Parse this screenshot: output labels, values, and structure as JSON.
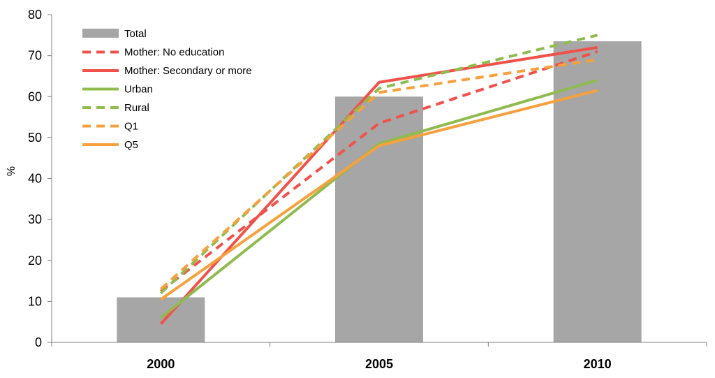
{
  "chart_data": {
    "type": "bar+line",
    "title": "",
    "xlabel": "",
    "ylabel": "%",
    "ylim": [
      0,
      80
    ],
    "yticks": [
      0,
      10,
      20,
      30,
      40,
      50,
      60,
      70,
      80
    ],
    "categories": [
      "2000",
      "2005",
      "2010"
    ],
    "legend_position": "top-left",
    "bars": {
      "name": "Total",
      "color": "#a6a6a6",
      "values": [
        11,
        60,
        73.5
      ]
    },
    "series": [
      {
        "name": "Mother: No education",
        "color": "#f0524b",
        "dashed": true,
        "values": [
          12.5,
          53.5,
          71
        ]
      },
      {
        "name": "Mother: Secondary or more",
        "color": "#f0524b",
        "dashed": false,
        "values": [
          4.5,
          63.5,
          72
        ]
      },
      {
        "name": "Urban",
        "color": "#8fbb4f",
        "dashed": false,
        "values": [
          6,
          48.5,
          64
        ]
      },
      {
        "name": "Rural",
        "color": "#8fbb4f",
        "dashed": true,
        "values": [
          12,
          62,
          75
        ]
      },
      {
        "name": "Q1",
        "color": "#f7a13e",
        "dashed": true,
        "values": [
          13,
          61,
          69
        ]
      },
      {
        "name": "Q5",
        "color": "#f7a13e",
        "dashed": false,
        "values": [
          10.5,
          48,
          61.5
        ]
      }
    ]
  }
}
